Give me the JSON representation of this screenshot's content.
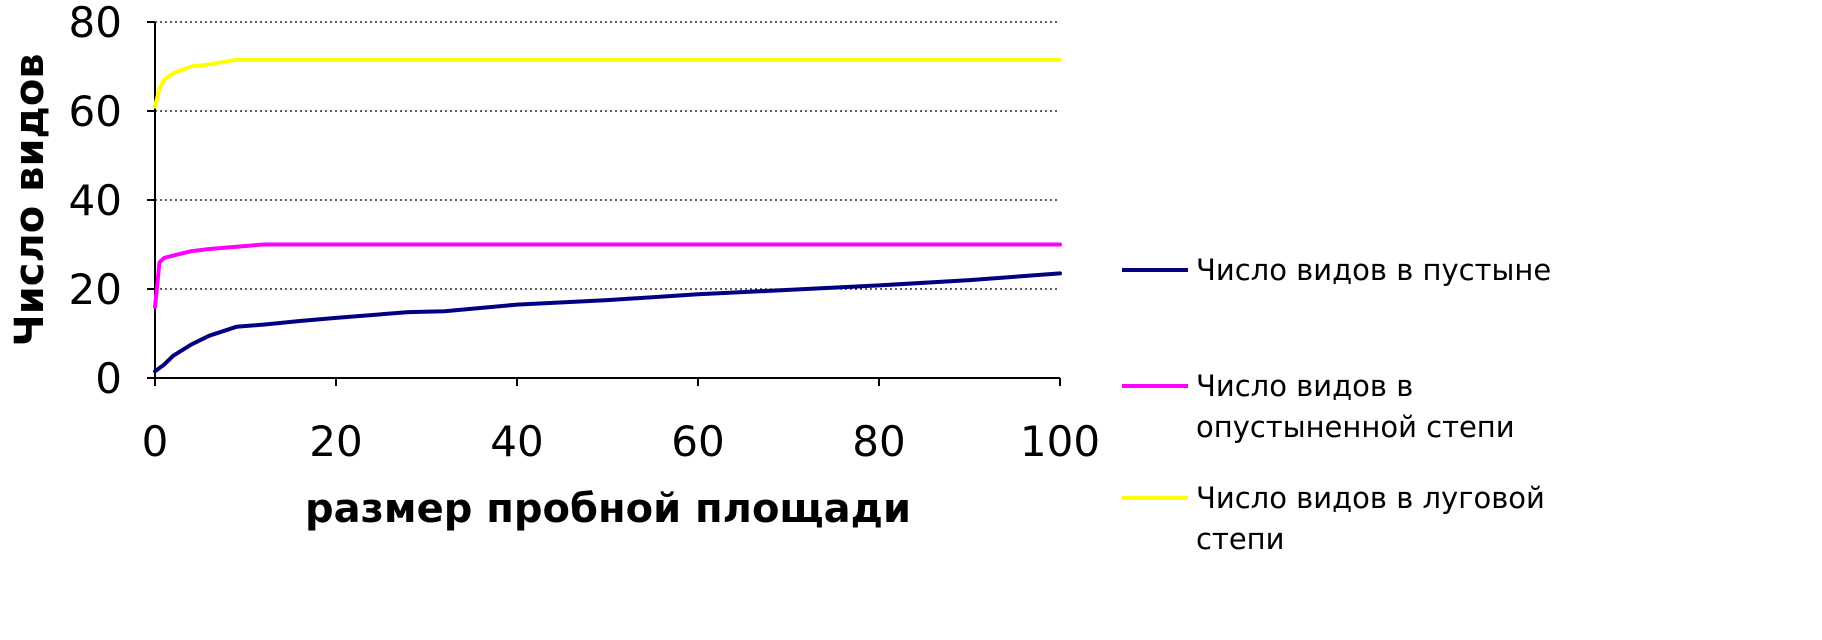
{
  "chart_data": {
    "type": "line",
    "xlabel": "размер пробной площади",
    "ylabel": "Число видов",
    "xlim": [
      0,
      100
    ],
    "ylim": [
      0,
      80
    ],
    "xticks": [
      "0",
      "20",
      "40",
      "60",
      "80",
      "100"
    ],
    "yticks": [
      "0",
      "20",
      "40",
      "60",
      "80"
    ],
    "grid": "horizontal-dotted",
    "legend_position": "right",
    "series": [
      {
        "name": "Число видов в пустыне",
        "color": "#000080",
        "x": [
          0,
          1,
          2,
          4,
          6,
          9,
          12,
          16,
          20,
          28,
          32,
          40,
          50,
          60,
          70,
          80,
          90,
          100
        ],
        "y": [
          1.5,
          3,
          5,
          7.5,
          9.5,
          11.5,
          12,
          12.8,
          13.5,
          14.8,
          15,
          16.5,
          17.5,
          18.8,
          19.8,
          20.8,
          22,
          23.5
        ]
      },
      {
        "name": "Число видов в опустыненной степи",
        "color": "#FF00FF",
        "x": [
          0,
          0.5,
          1,
          2,
          4,
          6,
          9,
          12,
          16,
          20,
          40,
          60,
          80,
          100
        ],
        "y": [
          16,
          26,
          27,
          27.5,
          28.5,
          29,
          29.5,
          30,
          30,
          30,
          30,
          30,
          30,
          30
        ]
      },
      {
        "name": "Число видов в луговой степи",
        "color": "#FFFF00",
        "x": [
          0,
          0.5,
          1,
          2,
          4,
          6,
          9,
          12,
          20,
          40,
          60,
          80,
          100
        ],
        "y": [
          61,
          65,
          67,
          68.5,
          70,
          70.5,
          71.5,
          71.5,
          71.5,
          71.5,
          71.5,
          71.5,
          71.5
        ]
      }
    ],
    "legend": [
      [
        "Число видов в пустыне"
      ],
      [
        "Число видов в",
        "опустыненной степи"
      ],
      [
        "Число видов в луговой",
        "степи"
      ]
    ]
  }
}
